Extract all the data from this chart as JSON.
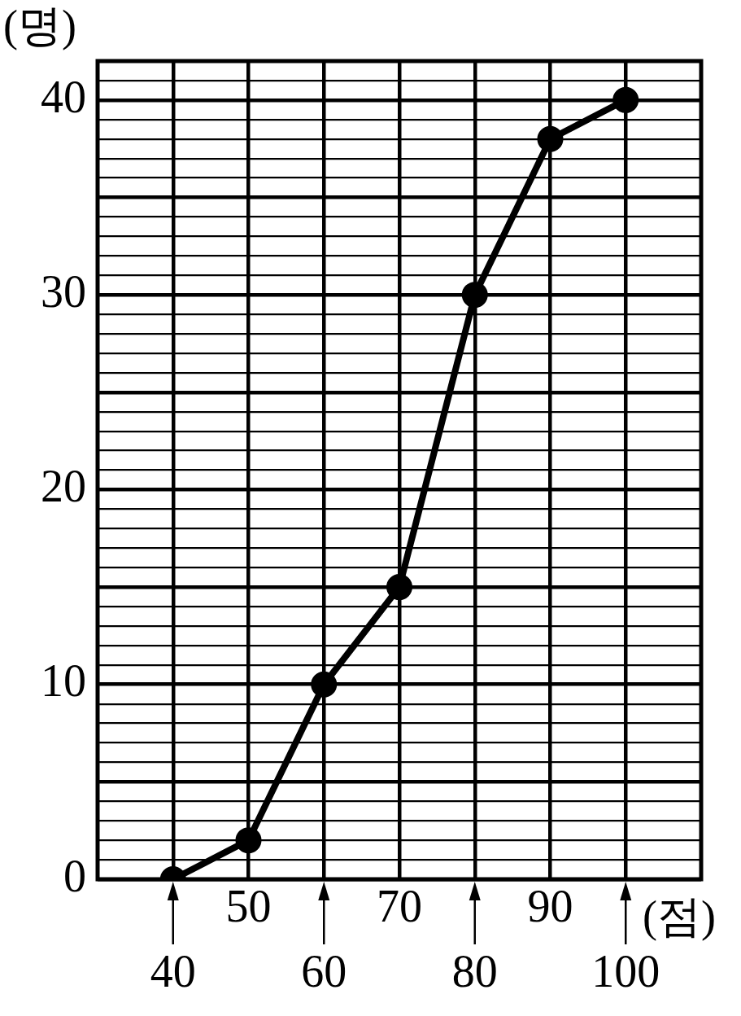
{
  "chart_data": {
    "type": "line",
    "xlabel": "(점)",
    "ylabel": "(명)",
    "x": [
      40,
      50,
      60,
      70,
      80,
      90,
      100
    ],
    "series": [
      {
        "color": "#000000",
        "values": [
          0,
          2,
          10,
          15,
          30,
          38,
          40
        ]
      }
    ],
    "xlim": [
      30,
      110
    ],
    "xticks": [
      40,
      60,
      80,
      100
    ],
    "x2lim": [
      30,
      110
    ],
    "x2ticks": [
      50,
      70,
      90
    ],
    "ylim": [
      0,
      42
    ],
    "yticks": [
      0,
      {
        "value": 1,
        "label": null
      },
      {
        "value": 2,
        "label": null
      },
      {
        "value": 3,
        "label": null
      },
      {
        "value": 4,
        "label": null
      },
      {
        "value": 5,
        "label": null
      },
      {
        "value": 6,
        "label": null
      },
      {
        "value": 7,
        "label": null
      },
      {
        "value": 8,
        "label": null
      },
      {
        "value": 9,
        "label": null
      },
      10,
      {
        "value": 11,
        "label": null
      },
      {
        "value": 12,
        "label": null
      },
      {
        "value": 13,
        "label": null
      },
      {
        "value": 14,
        "label": null
      },
      {
        "value": 15,
        "label": null
      },
      {
        "value": 16,
        "label": null
      },
      {
        "value": 17,
        "label": null
      },
      {
        "value": 18,
        "label": null
      },
      {
        "value": 19,
        "label": null
      },
      20,
      {
        "value": 21,
        "label": null
      },
      {
        "value": 22,
        "label": null
      },
      {
        "value": 23,
        "label": null
      },
      {
        "value": 24,
        "label": null
      },
      {
        "value": 25,
        "label": null
      },
      {
        "value": 26,
        "label": null
      },
      {
        "value": 27,
        "label": null
      },
      {
        "value": 28,
        "label": null
      },
      {
        "value": 29,
        "label": null
      },
      30,
      {
        "value": 31,
        "label": null
      },
      {
        "value": 32,
        "label": null
      },
      {
        "value": 33,
        "label": null
      },
      {
        "value": 34,
        "label": null
      },
      {
        "value": 35,
        "label": null
      },
      {
        "value": 36,
        "label": null
      },
      {
        "value": 37,
        "label": null
      },
      {
        "value": 38,
        "label": null
      },
      {
        "value": 39,
        "label": null
      },
      40,
      {
        "value": 41,
        "label": null
      }
    ],
    "grid": true,
    "marker": "circle",
    "line_style": "solid",
    "legend": false
  }
}
